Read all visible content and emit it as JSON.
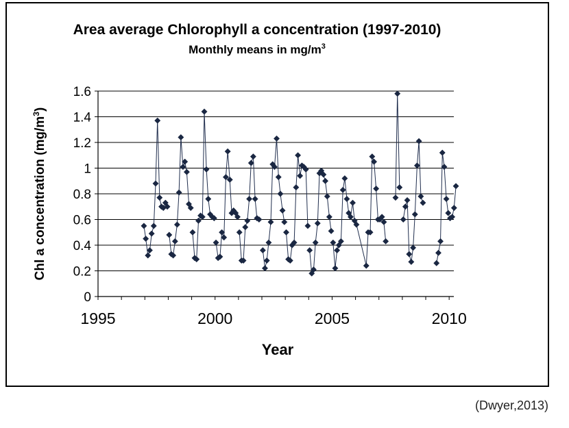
{
  "chart_data": {
    "type": "line",
    "title": "Area average Chlorophyll a concentration (1997-2010)",
    "subtitle": "Monthly means in mg/m3",
    "xlabel": "Year",
    "ylabel": "Chl a concentration (mg/m3)",
    "xlim": [
      1995,
      2010.2
    ],
    "ylim": [
      0,
      1.6
    ],
    "x_ticks": [
      "1995",
      "2000",
      "2005",
      "2010"
    ],
    "x_tick_values": [
      1995,
      2000,
      2005,
      2010
    ],
    "y_ticks": [
      "0",
      "0.2",
      "0.4",
      "0.6",
      "0.8",
      "1",
      "1.2",
      "1.4",
      "1.6"
    ],
    "y_tick_values": [
      0,
      0.2,
      0.4,
      0.6,
      0.8,
      1.0,
      1.2,
      1.4,
      1.6
    ],
    "grid": "horizontal",
    "legend": "none",
    "series": [
      {
        "color": "#1f2d4d",
        "marker": "diamond",
        "segments": [
          [
            [
              1996.96,
              0.55
            ],
            [
              1997.04,
              0.45
            ],
            [
              1997.13,
              0.32
            ],
            [
              1997.21,
              0.36
            ],
            [
              1997.29,
              0.49
            ],
            [
              1997.38,
              0.55
            ],
            [
              1997.46,
              0.88
            ],
            [
              1997.54,
              1.37
            ],
            [
              1997.63,
              0.77
            ],
            [
              1997.71,
              0.7
            ],
            [
              1997.79,
              0.69
            ],
            [
              1997.88,
              0.73
            ],
            [
              1997.96,
              0.7
            ]
          ],
          [
            [
              1998.04,
              0.48
            ],
            [
              1998.13,
              0.33
            ],
            [
              1998.21,
              0.32
            ],
            [
              1998.29,
              0.43
            ],
            [
              1998.38,
              0.56
            ],
            [
              1998.46,
              0.81
            ],
            [
              1998.54,
              1.24
            ],
            [
              1998.63,
              1.01
            ],
            [
              1998.71,
              1.05
            ],
            [
              1998.79,
              0.97
            ],
            [
              1998.88,
              0.72
            ],
            [
              1998.96,
              0.69
            ]
          ],
          [
            [
              1999.04,
              0.5
            ],
            [
              1999.13,
              0.3
            ],
            [
              1999.21,
              0.29
            ],
            [
              1999.29,
              0.59
            ],
            [
              1999.38,
              0.63
            ],
            [
              1999.46,
              0.62
            ],
            [
              1999.54,
              1.44
            ],
            [
              1999.63,
              0.99
            ],
            [
              1999.71,
              0.76
            ],
            [
              1999.79,
              0.64
            ],
            [
              1999.88,
              0.62
            ],
            [
              1999.96,
              0.61
            ]
          ],
          [
            [
              2000.04,
              0.42
            ],
            [
              2000.13,
              0.3
            ],
            [
              2000.21,
              0.31
            ],
            [
              2000.29,
              0.5
            ],
            [
              2000.38,
              0.46
            ],
            [
              2000.46,
              0.93
            ],
            [
              2000.54,
              1.13
            ],
            [
              2000.63,
              0.91
            ],
            [
              2000.71,
              0.65
            ],
            [
              2000.79,
              0.67
            ],
            [
              2000.88,
              0.65
            ],
            [
              2000.96,
              0.62
            ]
          ],
          [
            [
              2001.04,
              0.5
            ],
            [
              2001.13,
              0.28
            ],
            [
              2001.21,
              0.28
            ],
            [
              2001.29,
              0.54
            ],
            [
              2001.38,
              0.59
            ],
            [
              2001.46,
              0.76
            ],
            [
              2001.54,
              1.04
            ],
            [
              2001.63,
              1.09
            ],
            [
              2001.71,
              0.76
            ],
            [
              2001.79,
              0.61
            ],
            [
              2001.88,
              0.6
            ]
          ],
          [
            [
              2002.04,
              0.36
            ],
            [
              2002.13,
              0.22
            ],
            [
              2002.21,
              0.28
            ],
            [
              2002.29,
              0.42
            ],
            [
              2002.38,
              0.58
            ],
            [
              2002.46,
              1.03
            ],
            [
              2002.54,
              1.01
            ],
            [
              2002.63,
              1.23
            ],
            [
              2002.71,
              0.93
            ],
            [
              2002.79,
              0.8
            ],
            [
              2002.88,
              0.67
            ],
            [
              2002.96,
              0.58
            ]
          ],
          [
            [
              2003.04,
              0.5
            ],
            [
              2003.13,
              0.29
            ],
            [
              2003.21,
              0.28
            ],
            [
              2003.29,
              0.4
            ],
            [
              2003.38,
              0.42
            ],
            [
              2003.46,
              0.85
            ],
            [
              2003.54,
              1.1
            ],
            [
              2003.63,
              0.94
            ],
            [
              2003.71,
              1.02
            ],
            [
              2003.79,
              1.01
            ],
            [
              2003.88,
              0.99
            ],
            [
              2003.96,
              0.55
            ]
          ],
          [
            [
              2004.04,
              0.36
            ],
            [
              2004.13,
              0.18
            ],
            [
              2004.21,
              0.21
            ],
            [
              2004.29,
              0.42
            ],
            [
              2004.38,
              0.57
            ],
            [
              2004.46,
              0.96
            ],
            [
              2004.54,
              0.98
            ],
            [
              2004.63,
              0.95
            ],
            [
              2004.71,
              0.9
            ],
            [
              2004.79,
              0.78
            ],
            [
              2004.88,
              0.62
            ],
            [
              2004.96,
              0.51
            ]
          ],
          [
            [
              2005.04,
              0.42
            ],
            [
              2005.13,
              0.22
            ],
            [
              2005.21,
              0.36
            ],
            [
              2005.29,
              0.4
            ],
            [
              2005.38,
              0.43
            ],
            [
              2005.46,
              0.83
            ],
            [
              2005.54,
              0.92
            ],
            [
              2005.63,
              0.76
            ],
            [
              2005.71,
              0.65
            ],
            [
              2005.79,
              0.62
            ],
            [
              2005.88,
              0.73
            ],
            [
              2005.96,
              0.59
            ]
          ],
          [
            [
              2006.04,
              0.56
            ],
            [
              2006.46,
              0.24
            ],
            [
              2006.54,
              0.5
            ],
            [
              2006.63,
              0.5
            ],
            [
              2006.71,
              1.09
            ],
            [
              2006.79,
              1.05
            ],
            [
              2006.88,
              0.84
            ],
            [
              2006.96,
              0.6
            ]
          ],
          [
            [
              2007.04,
              0.6
            ],
            [
              2007.13,
              0.62
            ],
            [
              2007.21,
              0.58
            ],
            [
              2007.29,
              0.43
            ]
          ],
          [
            [
              2007.71,
              0.77
            ],
            [
              2007.79,
              1.58
            ],
            [
              2007.88,
              0.85
            ]
          ],
          [
            [
              2008.04,
              0.6
            ],
            [
              2008.13,
              0.7
            ],
            [
              2008.21,
              0.75
            ],
            [
              2008.29,
              0.33
            ],
            [
              2008.38,
              0.27
            ],
            [
              2008.46,
              0.38
            ],
            [
              2008.54,
              0.64
            ],
            [
              2008.63,
              1.02
            ],
            [
              2008.71,
              1.21
            ],
            [
              2008.79,
              0.78
            ],
            [
              2008.88,
              0.73
            ]
          ],
          [
            [
              2009.46,
              0.26
            ],
            [
              2009.54,
              0.34
            ],
            [
              2009.63,
              0.43
            ],
            [
              2009.71,
              1.12
            ],
            [
              2009.79,
              1.01
            ],
            [
              2009.88,
              0.76
            ],
            [
              2009.96,
              0.65
            ]
          ],
          [
            [
              2010.04,
              0.61
            ],
            [
              2010.13,
              0.62
            ],
            [
              2010.21,
              0.69
            ],
            [
              2010.29,
              0.86
            ]
          ]
        ]
      }
    ]
  },
  "source_note": "(Dwyer,2013)"
}
